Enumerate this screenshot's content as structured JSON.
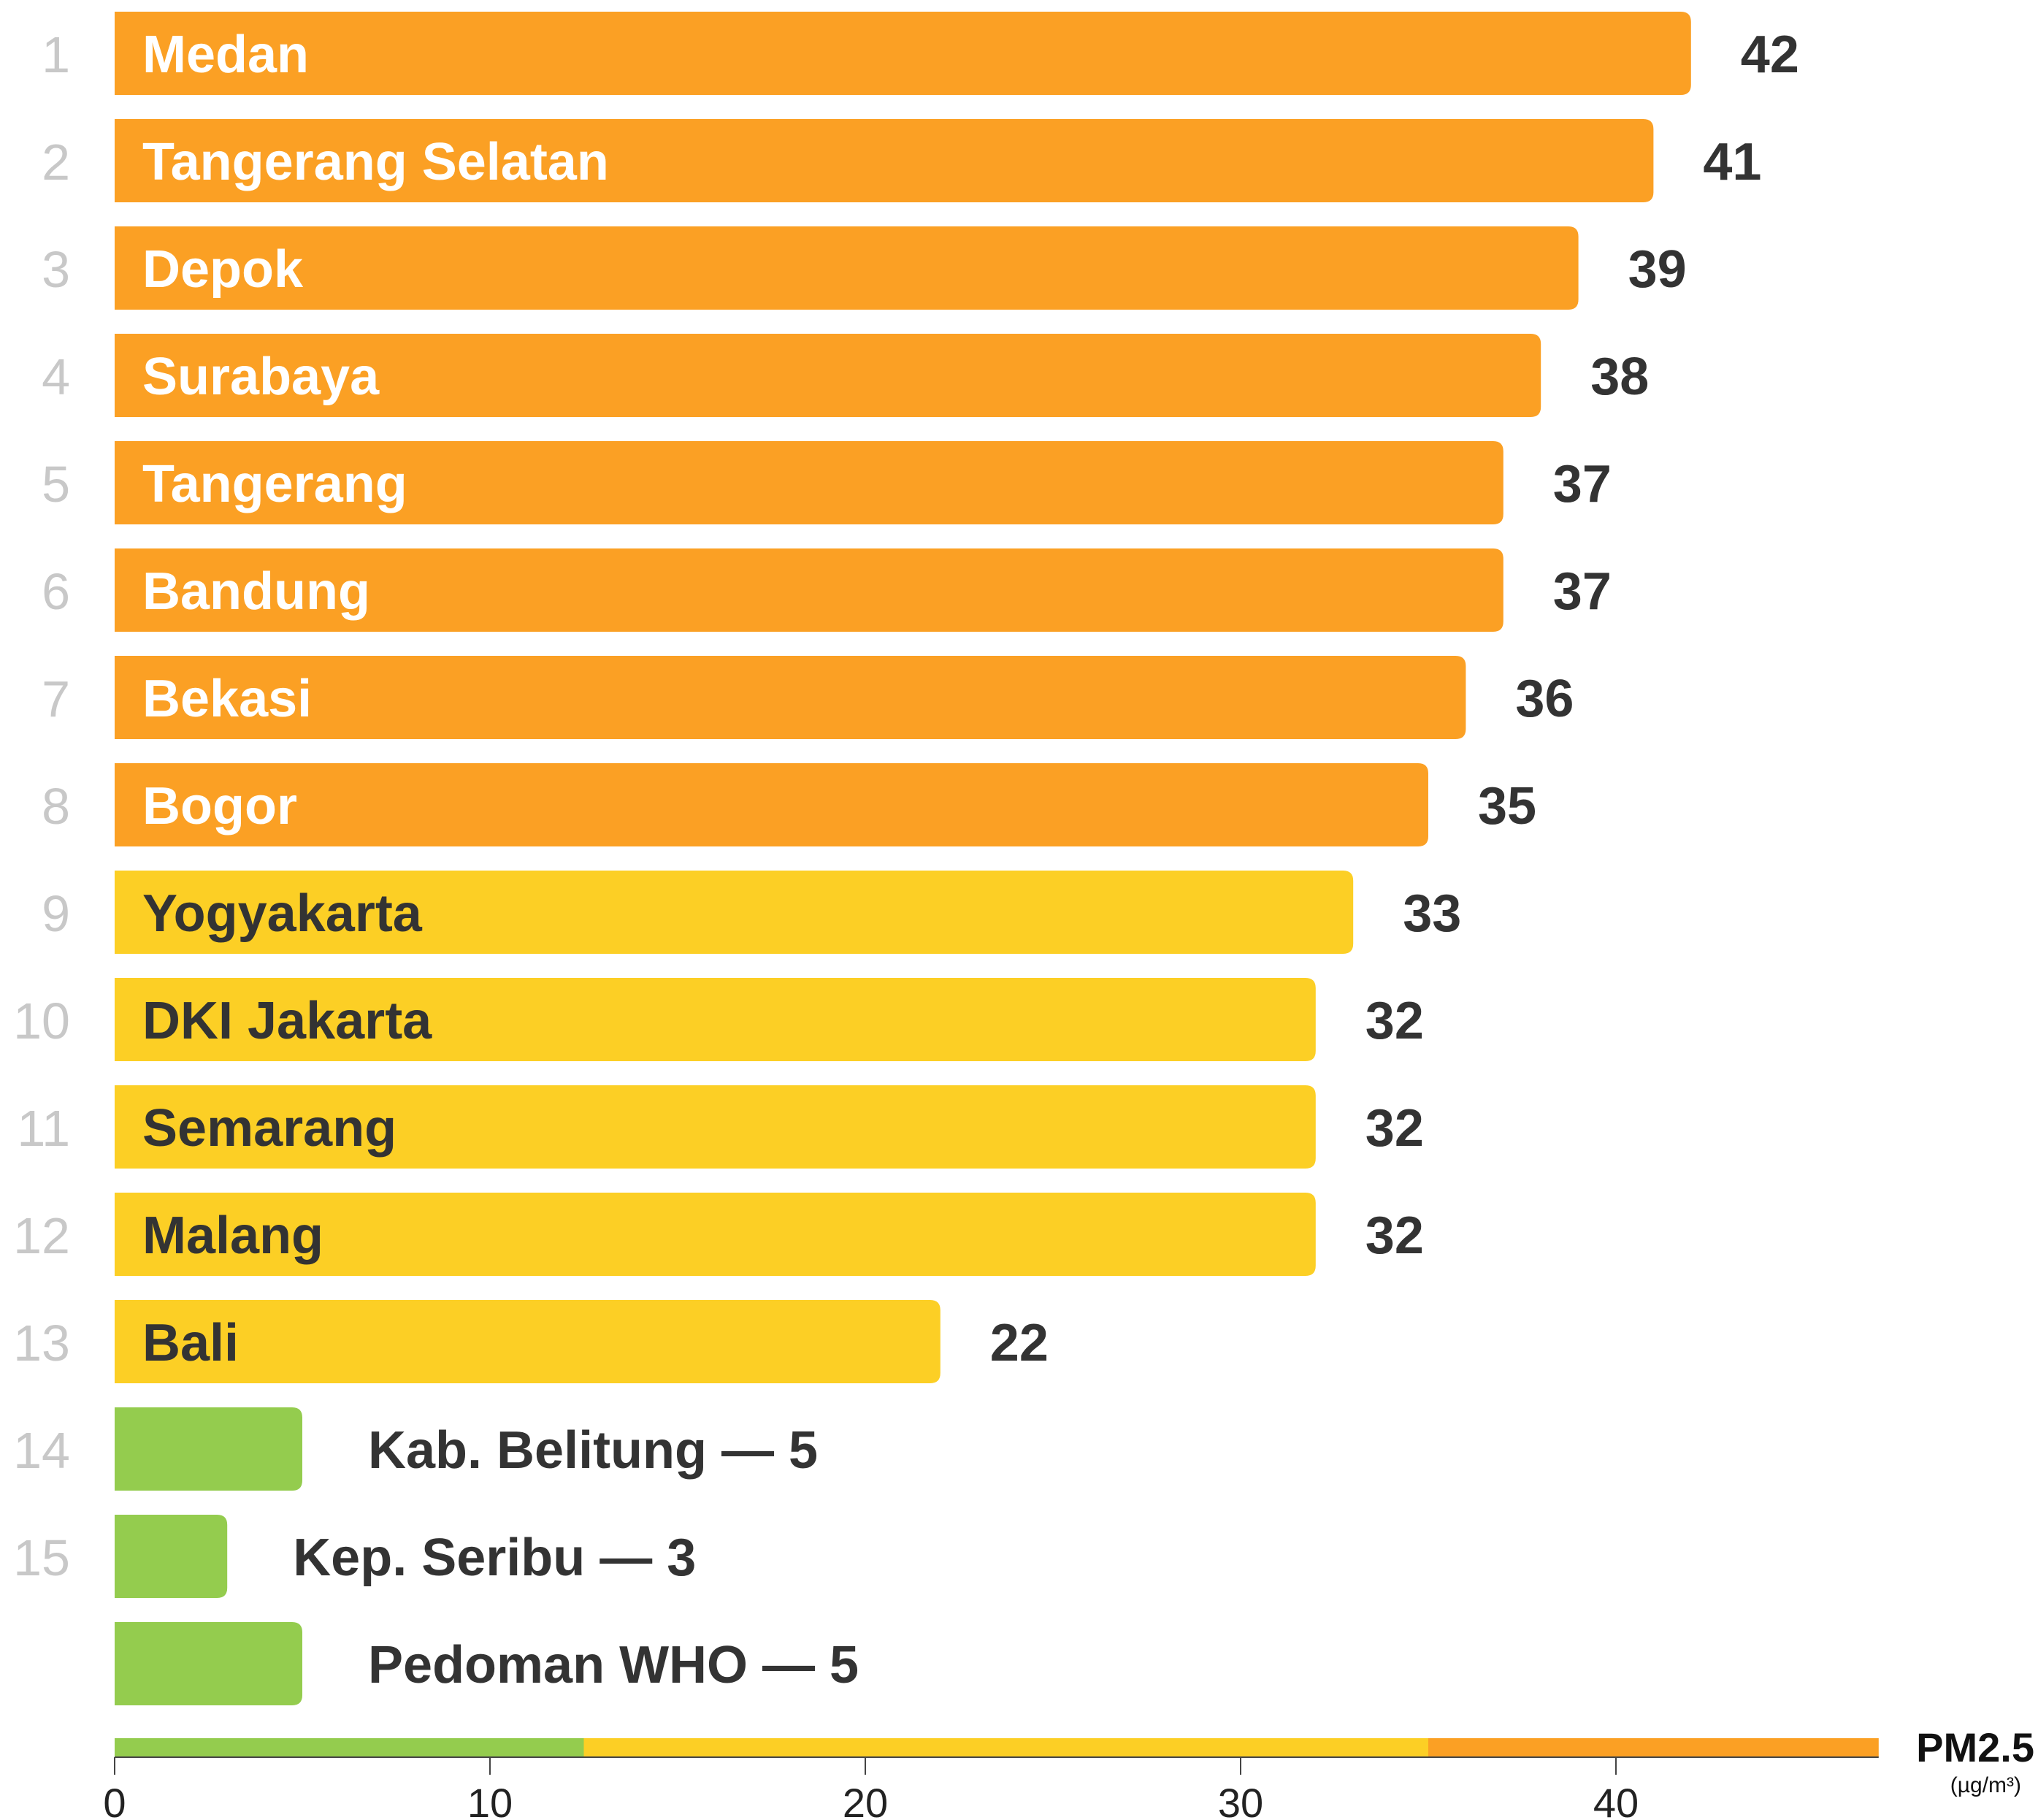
{
  "chart_data": {
    "type": "bar",
    "orientation": "horizontal",
    "title": "",
    "xlabel": "PM2.5",
    "xlabel_unit": "(µg/m³)",
    "xlim": [
      0,
      47
    ],
    "xticks": [
      0,
      10,
      20,
      30,
      40
    ],
    "grid": false,
    "colors": {
      "orange": "#FBA024",
      "yellow": "#FCCF25",
      "green": "#94CC4E",
      "rank_text": "#c8c8c8",
      "value_text": "#333333"
    },
    "color_scale": [
      {
        "from": 0,
        "to": 12.5,
        "color": "green"
      },
      {
        "from": 12.5,
        "to": 35,
        "color": "yellow"
      },
      {
        "from": 35,
        "to": 47,
        "color": "orange"
      }
    ],
    "bars": [
      {
        "rank": "1",
        "label": "Medan",
        "value": 42,
        "value_label": "42",
        "color": "orange",
        "label_style": "inside"
      },
      {
        "rank": "2",
        "label": "Tangerang Selatan",
        "value": 41,
        "value_label": "41",
        "color": "orange",
        "label_style": "inside"
      },
      {
        "rank": "3",
        "label": "Depok",
        "value": 39,
        "value_label": "39",
        "color": "orange",
        "label_style": "inside"
      },
      {
        "rank": "4",
        "label": "Surabaya",
        "value": 38,
        "value_label": "38",
        "color": "orange",
        "label_style": "inside"
      },
      {
        "rank": "5",
        "label": "Tangerang",
        "value": 37,
        "value_label": "37",
        "color": "orange",
        "label_style": "inside"
      },
      {
        "rank": "6",
        "label": "Bandung",
        "value": 37,
        "value_label": "37",
        "color": "orange",
        "label_style": "inside"
      },
      {
        "rank": "7",
        "label": "Bekasi",
        "value": 36,
        "value_label": "36",
        "color": "orange",
        "label_style": "inside"
      },
      {
        "rank": "8",
        "label": "Bogor",
        "value": 35,
        "value_label": "35",
        "color": "orange",
        "label_style": "inside"
      },
      {
        "rank": "9",
        "label": "Yogyakarta",
        "value": 33,
        "value_label": "33",
        "color": "yellow",
        "label_style": "inside"
      },
      {
        "rank": "10",
        "label": "DKI Jakarta",
        "value": 32,
        "value_label": "32",
        "color": "yellow",
        "label_style": "inside"
      },
      {
        "rank": "11",
        "label": "Semarang",
        "value": 32,
        "value_label": "32",
        "color": "yellow",
        "label_style": "inside"
      },
      {
        "rank": "12",
        "label": "Malang",
        "value": 32,
        "value_label": "32",
        "color": "yellow",
        "label_style": "inside"
      },
      {
        "rank": "13",
        "label": "Bali",
        "value": 22,
        "value_label": "22",
        "color": "yellow",
        "label_style": "inside"
      },
      {
        "rank": "14",
        "label": "Kab. Belitung — 5",
        "value": 5,
        "value_label": "",
        "color": "green",
        "label_style": "outside"
      },
      {
        "rank": "15",
        "label": "Kep. Seribu — 3",
        "value": 3,
        "value_label": "",
        "color": "green",
        "label_style": "outside"
      },
      {
        "rank": "",
        "label": "Pedoman WHO — 5",
        "value": 5,
        "value_label": "",
        "color": "green",
        "label_style": "outside"
      }
    ]
  }
}
